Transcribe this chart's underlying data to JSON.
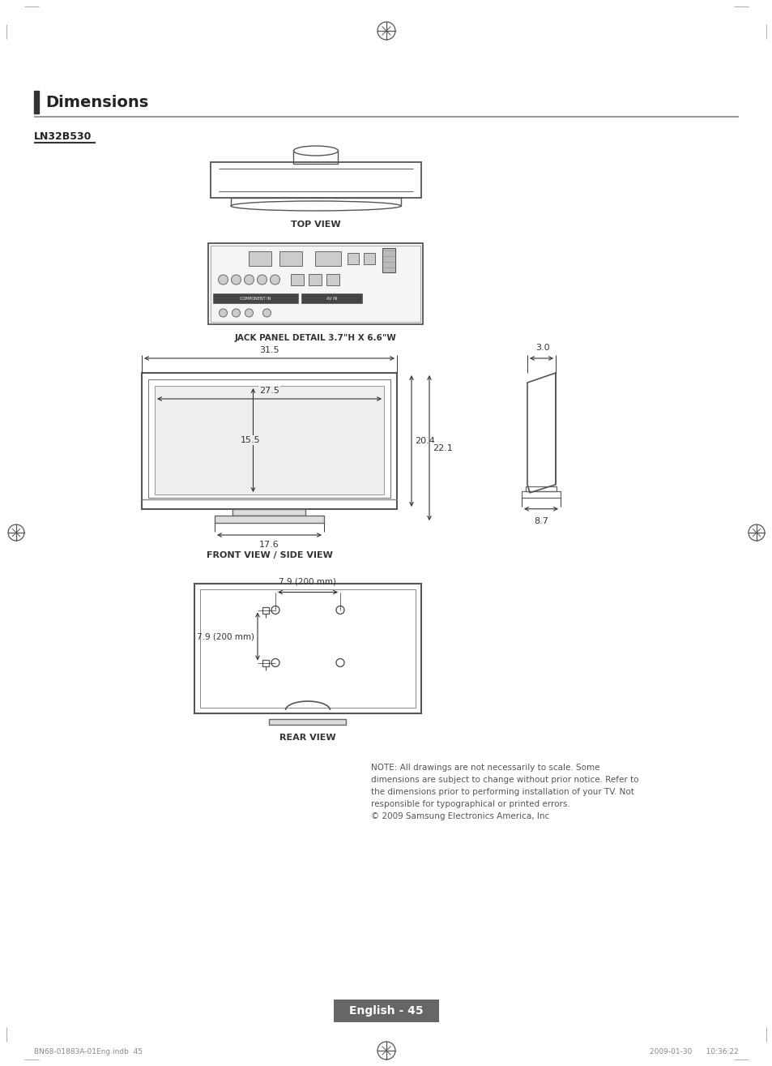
{
  "title": "Dimensions",
  "subtitle": "LN32B530",
  "background_color": "#ffffff",
  "top_view_label": "TOP VIEW",
  "jack_panel_label": "JACK PANEL DETAIL 3.7\"H X 6.6\"W",
  "front_side_label": "FRONT VIEW / SIDE VIEW",
  "rear_label": "REAR VIEW",
  "dim_31_5": "31.5",
  "dim_27_5": "27.5",
  "dim_15_5": "15.5",
  "dim_20_4": "20.4",
  "dim_22_1": "22.1",
  "dim_17_6": "17.6",
  "dim_3_0": "3.0",
  "dim_8_7": "8.7",
  "dim_7_9_h": "7.9 (200 mm)",
  "dim_7_9_v": "7.9 (200 mm)",
  "note_line1": "NOTE: All drawings are not necessarily to scale. Some",
  "note_line2": "dimensions are subject to change without prior notice. Refer to",
  "note_line3": "the dimensions prior to performing installation of your TV. Not",
  "note_line4": "responsible for typographical or printed errors.",
  "note_line5": "© 2009 Samsung Electronics America, Inc",
  "footer_text": "English - 45",
  "bottom_bar_text": "BN68-01883A-01Eng.indb  45",
  "bottom_date": "2009-01-30      10:36:22"
}
